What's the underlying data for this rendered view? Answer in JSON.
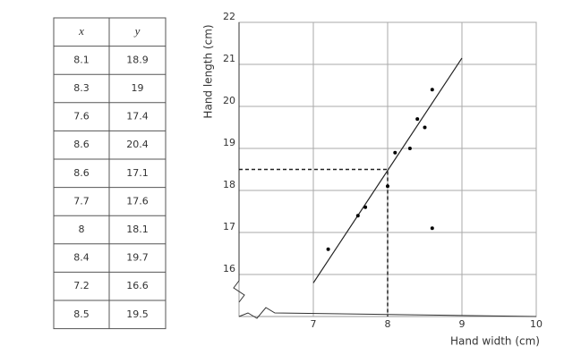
{
  "table": {
    "header": [
      "x",
      "y"
    ],
    "rows": [
      [
        "8.1",
        "18.9"
      ],
      [
        "8.3",
        "19"
      ],
      [
        "7.6",
        "17.4"
      ],
      [
        "8.6",
        "20.4"
      ],
      [
        "8.6",
        "17.1"
      ],
      [
        "7.7",
        "17.6"
      ],
      [
        "8",
        "18.1"
      ],
      [
        "8.4",
        "19.7"
      ],
      [
        "7.2",
        "16.6"
      ],
      [
        "8.5",
        "19.5"
      ]
    ]
  },
  "chart_data": {
    "type": "scatter",
    "x_label": "Hand width (cm)",
    "y_label": "Hand length (cm)",
    "x": [
      8.1,
      8.3,
      7.6,
      8.6,
      8.6,
      7.7,
      8,
      8.4,
      7.2,
      8.5
    ],
    "values": [
      18.9,
      19,
      17.4,
      20.4,
      17.1,
      17.6,
      18.1,
      19.7,
      16.6,
      19.5
    ],
    "color": "#000000",
    "trend_line": {
      "x": [
        7,
        9
      ],
      "y": [
        15.8,
        21.15
      ]
    },
    "reference": {
      "x": 8,
      "y": 18.5
    },
    "xlim": [
      6,
      10
    ],
    "ylim": [
      15,
      22
    ],
    "xticks": [
      7,
      8,
      9,
      10
    ],
    "yticks": [
      16,
      17,
      18,
      19,
      20,
      21,
      22
    ],
    "grid": true
  }
}
